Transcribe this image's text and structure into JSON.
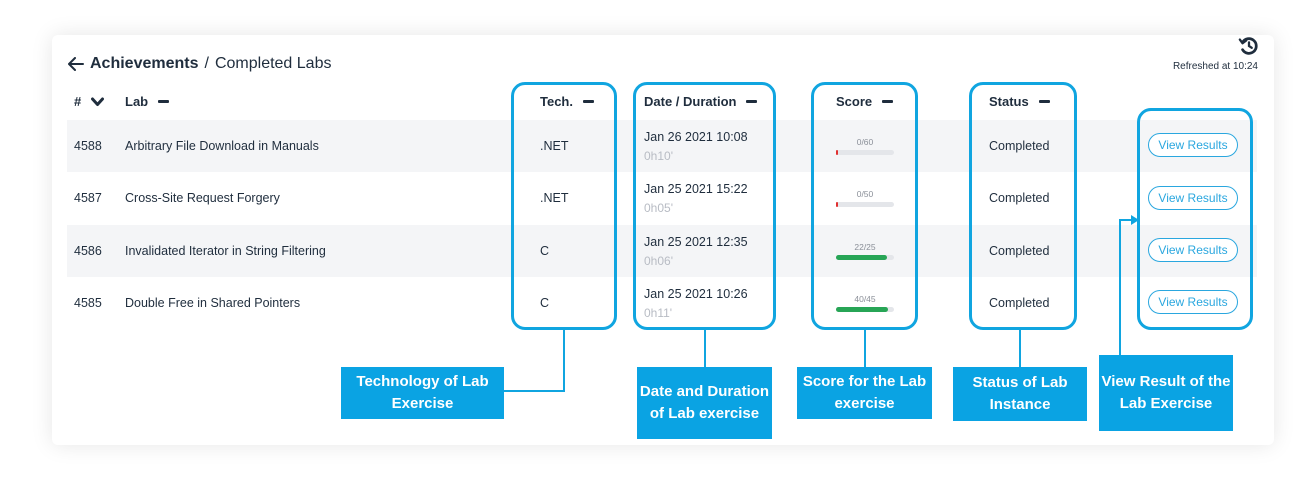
{
  "header": {
    "back_icon": "arrow-left-icon",
    "crumb_main": "Achievements",
    "crumb_sep": "/",
    "crumb_sub": "Completed Labs",
    "refresh_icon": "history-icon",
    "refreshed": "Refreshed at 10:24"
  },
  "columns": {
    "num": "#",
    "lab": "Lab",
    "tech": "Tech.",
    "date": "Date / Duration",
    "score": "Score",
    "status": "Status"
  },
  "rows": [
    {
      "id": "4588",
      "lab": "Arbitrary File Download in Manuals",
      "tech": ".NET",
      "date": "Jan 26 2021 10:08",
      "duration": "0h10'",
      "score": "0/60",
      "score_fraction": 0.0,
      "status": "Completed",
      "action": "View Results"
    },
    {
      "id": "4587",
      "lab": "Cross-Site Request Forgery",
      "tech": ".NET",
      "date": "Jan 25 2021 15:22",
      "duration": "0h05'",
      "score": "0/50",
      "score_fraction": 0.0,
      "status": "Completed",
      "action": "View Results"
    },
    {
      "id": "4586",
      "lab": "Invalidated Iterator in String Filtering",
      "tech": "C",
      "date": "Jan 25 2021 12:35",
      "duration": "0h06'",
      "score": "22/25",
      "score_fraction": 0.88,
      "status": "Completed",
      "action": "View Results"
    },
    {
      "id": "4585",
      "lab": "Double Free in Shared Pointers",
      "tech": "C",
      "date": "Jan 25 2021 10:26",
      "duration": "0h11'",
      "score": "40/45",
      "score_fraction": 0.89,
      "status": "Completed",
      "action": "View Results"
    }
  ],
  "callouts": {
    "tech": "Technology of Lab Exercise",
    "date": "Date and Duration of Lab exercise",
    "score": "Score for the Lab exercise",
    "status": "Status of Lab Instance",
    "view": "View Result of the Lab Exercise"
  },
  "colors": {
    "accent": "#10a5e0",
    "score_good": "#27a556",
    "score_zero": "#e03030"
  }
}
